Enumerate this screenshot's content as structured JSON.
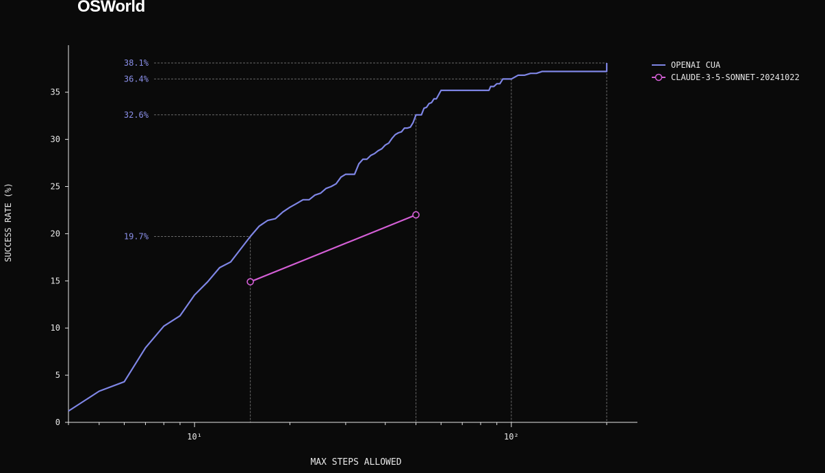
{
  "chart_data": {
    "type": "line",
    "title": "OSWorld",
    "xlabel": "MAX STEPS ALLOWED",
    "ylabel": "SUCCESS RATE (%)",
    "xscale": "log",
    "xlim": [
      4,
      250
    ],
    "ylim": [
      0,
      38.1
    ],
    "yticks": [
      0,
      5,
      10,
      15,
      20,
      25,
      30,
      35
    ],
    "xtick_labels": [
      {
        "value": 10,
        "label": "10¹"
      },
      {
        "value": 100,
        "label": "10²"
      }
    ],
    "legend_position": "top-right",
    "grid": false,
    "annotations": [
      {
        "label": "38.1%",
        "x": 200,
        "y": 38.1
      },
      {
        "label": "36.4%",
        "x": 100,
        "y": 36.4
      },
      {
        "label": "32.6%",
        "x": 50,
        "y": 32.6
      },
      {
        "label": "19.7%",
        "x": 15,
        "y": 19.7
      }
    ],
    "series": [
      {
        "name": "OPENAI CUA",
        "color": "#7f86e6",
        "marker": "none",
        "x": [
          4,
          5,
          6,
          7,
          8,
          9,
          10,
          11,
          12,
          13,
          15,
          16,
          17,
          18,
          19,
          20,
          21,
          22,
          23,
          24,
          25,
          26,
          27,
          28,
          29,
          30,
          31,
          32,
          33,
          34,
          35,
          36,
          37,
          38,
          39,
          40,
          41,
          42,
          43,
          44,
          45,
          46,
          47,
          48,
          49,
          50,
          51,
          52,
          53,
          54,
          55,
          56,
          57,
          58,
          60,
          62,
          64,
          66,
          68,
          70,
          75,
          80,
          85,
          86,
          88,
          90,
          92,
          94,
          96,
          100,
          105,
          110,
          115,
          120,
          125,
          130,
          140,
          150,
          160,
          170,
          180,
          190,
          200,
          200
        ],
        "y": [
          1.2,
          3.3,
          4.3,
          7.9,
          10.2,
          11.3,
          13.5,
          14.9,
          16.4,
          17.0,
          19.7,
          20.8,
          21.4,
          21.6,
          22.3,
          22.8,
          23.2,
          23.6,
          23.6,
          24.1,
          24.3,
          24.8,
          25.0,
          25.3,
          26.0,
          26.3,
          26.3,
          26.3,
          27.4,
          27.9,
          27.9,
          28.3,
          28.5,
          28.8,
          29.0,
          29.4,
          29.6,
          30.1,
          30.5,
          30.7,
          30.8,
          31.2,
          31.2,
          31.3,
          31.8,
          32.6,
          32.6,
          32.6,
          33.3,
          33.4,
          33.8,
          33.9,
          34.3,
          34.3,
          35.2,
          35.2,
          35.2,
          35.2,
          35.2,
          35.2,
          35.2,
          35.2,
          35.2,
          35.6,
          35.6,
          35.9,
          35.9,
          36.4,
          36.4,
          36.4,
          36.8,
          36.8,
          37.0,
          37.0,
          37.2,
          37.2,
          37.2,
          37.2,
          37.2,
          37.2,
          37.2,
          37.2,
          37.2,
          38.1
        ]
      },
      {
        "name": "CLAUDE-3-5-SONNET-20241022",
        "color": "#d45fd6",
        "marker": "circle",
        "x": [
          15,
          50
        ],
        "y": [
          14.9,
          22.0
        ]
      }
    ]
  }
}
